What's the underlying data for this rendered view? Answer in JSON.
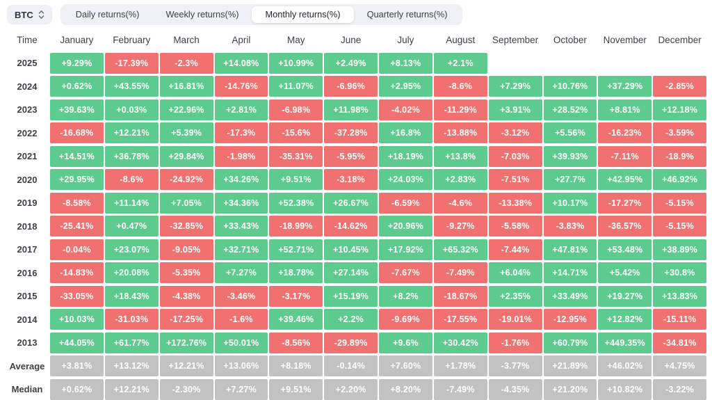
{
  "toolbar": {
    "symbol": "BTC",
    "tabs": [
      {
        "label": "Daily returns(%)",
        "active": false
      },
      {
        "label": "Weekly returns(%)",
        "active": false
      },
      {
        "label": "Monthly returns(%)",
        "active": true
      },
      {
        "label": "Quarterly returns(%)",
        "active": false
      }
    ]
  },
  "colors": {
    "positive": "#5ecb8e",
    "negative": "#f07170",
    "neutral": "#c2c2c2",
    "cell_text": "#ffffff",
    "tab_bar_bg": "#eef0f5",
    "active_tab_bg": "#ffffff",
    "label_text": "#3d4148"
  },
  "chart_data": {
    "type": "heatmap",
    "title": "BTC Monthly returns(%)",
    "columns": [
      "Time",
      "January",
      "February",
      "March",
      "April",
      "May",
      "June",
      "July",
      "August",
      "September",
      "October",
      "November",
      "December"
    ],
    "legend": {
      "positive": "green",
      "negative": "red",
      "aggregate": "gray"
    },
    "rows": [
      {
        "label": "2025",
        "neutral": false,
        "values": [
          "+9.29%",
          "-17.39%",
          "-2.3%",
          "+14.08%",
          "+10.99%",
          "+2.49%",
          "+8.13%",
          "+2.1%",
          null,
          null,
          null,
          null
        ]
      },
      {
        "label": "2024",
        "neutral": false,
        "values": [
          "+0.62%",
          "+43.55%",
          "+16.81%",
          "-14.76%",
          "+11.07%",
          "-6.96%",
          "+2.95%",
          "-8.6%",
          "+7.29%",
          "+10.76%",
          "+37.29%",
          "-2.85%"
        ]
      },
      {
        "label": "2023",
        "neutral": false,
        "values": [
          "+39.63%",
          "+0.03%",
          "+22.96%",
          "+2.81%",
          "-6.98%",
          "+11.98%",
          "-4.02%",
          "-11.29%",
          "+3.91%",
          "+28.52%",
          "+8.81%",
          "+12.18%"
        ]
      },
      {
        "label": "2022",
        "neutral": false,
        "values": [
          "-16.68%",
          "+12.21%",
          "+5.39%",
          "-17.3%",
          "-15.6%",
          "-37.28%",
          "+16.8%",
          "-13.88%",
          "-3.12%",
          "+5.56%",
          "-16.23%",
          "-3.59%"
        ]
      },
      {
        "label": "2021",
        "neutral": false,
        "values": [
          "+14.51%",
          "+36.78%",
          "+29.84%",
          "-1.98%",
          "-35.31%",
          "-5.95%",
          "+18.19%",
          "+13.8%",
          "-7.03%",
          "+39.93%",
          "-7.11%",
          "-18.9%"
        ]
      },
      {
        "label": "2020",
        "neutral": false,
        "values": [
          "+29.95%",
          "-8.6%",
          "-24.92%",
          "+34.26%",
          "+9.51%",
          "-3.18%",
          "+24.03%",
          "+2.83%",
          "-7.51%",
          "+27.7%",
          "+42.95%",
          "+46.92%"
        ]
      },
      {
        "label": "2019",
        "neutral": false,
        "values": [
          "-8.58%",
          "+11.14%",
          "+7.05%",
          "+34.36%",
          "+52.38%",
          "+26.67%",
          "-6.59%",
          "-4.6%",
          "-13.38%",
          "+10.17%",
          "-17.27%",
          "-5.15%"
        ]
      },
      {
        "label": "2018",
        "neutral": false,
        "values": [
          "-25.41%",
          "+0.47%",
          "-32.85%",
          "+33.43%",
          "-18.99%",
          "-14.62%",
          "+20.96%",
          "-9.27%",
          "-5.58%",
          "-3.83%",
          "-36.57%",
          "-5.15%"
        ]
      },
      {
        "label": "2017",
        "neutral": false,
        "values": [
          "-0.04%",
          "+23.07%",
          "-9.05%",
          "+32.71%",
          "+52.71%",
          "+10.45%",
          "+17.92%",
          "+65.32%",
          "-7.44%",
          "+47.81%",
          "+53.48%",
          "+38.89%"
        ]
      },
      {
        "label": "2016",
        "neutral": false,
        "values": [
          "-14.83%",
          "+20.08%",
          "-5.35%",
          "+7.27%",
          "+18.78%",
          "+27.14%",
          "-7.67%",
          "-7.49%",
          "+6.04%",
          "+14.71%",
          "+5.42%",
          "+30.8%"
        ]
      },
      {
        "label": "2015",
        "neutral": false,
        "values": [
          "-33.05%",
          "+18.43%",
          "-4.38%",
          "-3.46%",
          "-3.17%",
          "+15.19%",
          "+8.2%",
          "-18.67%",
          "+2.35%",
          "+33.49%",
          "+19.27%",
          "+13.83%"
        ]
      },
      {
        "label": "2014",
        "neutral": false,
        "values": [
          "+10.03%",
          "-31.03%",
          "-17.25%",
          "-1.6%",
          "+39.46%",
          "+2.2%",
          "-9.69%",
          "-17.55%",
          "-19.01%",
          "-12.95%",
          "+12.82%",
          "-15.11%"
        ]
      },
      {
        "label": "2013",
        "neutral": false,
        "values": [
          "+44.05%",
          "+61.77%",
          "+172.76%",
          "+50.01%",
          "-8.56%",
          "-29.89%",
          "+9.6%",
          "+30.42%",
          "-1.76%",
          "+60.79%",
          "+449.35%",
          "-34.81%"
        ]
      },
      {
        "label": "Average",
        "neutral": true,
        "values": [
          "+3.81%",
          "+13.12%",
          "+12.21%",
          "+13.06%",
          "+8.18%",
          "-0.14%",
          "+7.60%",
          "+1.78%",
          "-3.77%",
          "+21.89%",
          "+46.02%",
          "+4.75%"
        ]
      },
      {
        "label": "Median",
        "neutral": true,
        "values": [
          "+0.62%",
          "+12.21%",
          "-2.30%",
          "+7.27%",
          "+9.51%",
          "+2.20%",
          "+8.20%",
          "-7.49%",
          "-4.35%",
          "+21.20%",
          "+10.82%",
          "-3.22%"
        ]
      }
    ]
  }
}
